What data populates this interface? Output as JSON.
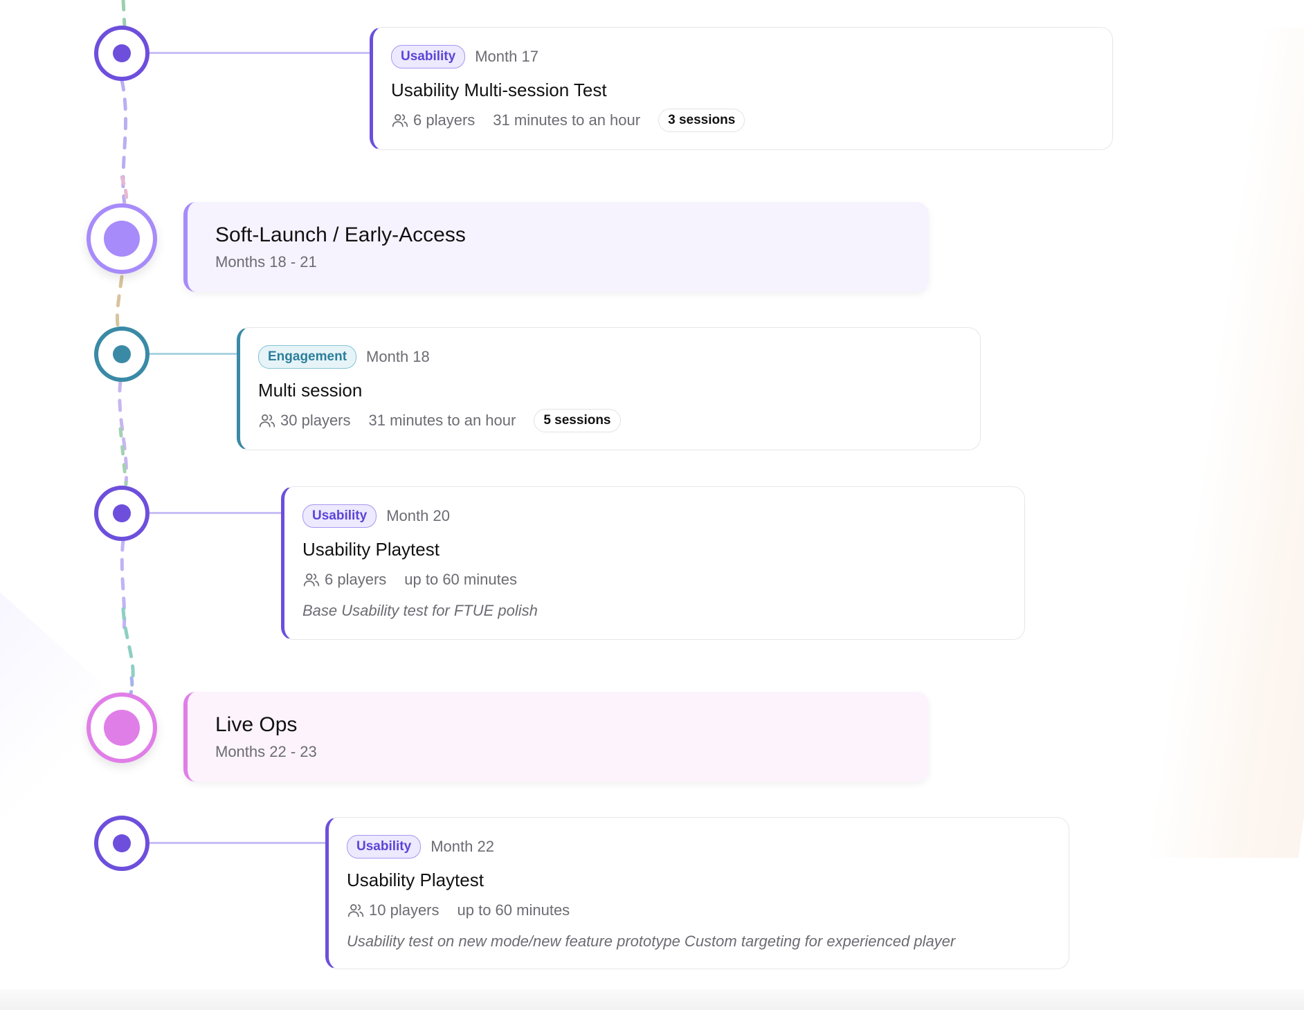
{
  "colors": {
    "usability": "#6d4fdc",
    "usability_line": "#c7bdf5",
    "engagement": "#3a8aa6",
    "engagement_line": "#a9d3e0",
    "phase_softlaunch": "#a78bfa",
    "phase_softlaunch_bg": "#f6f3ff",
    "phase_liveops": "#e07ee8",
    "phase_liveops_bg": "#fcf3fd"
  },
  "timeline": {
    "items": [
      {
        "kind": "test",
        "tag": "Usability",
        "month": "Month 17",
        "title": "Usability Multi-session Test",
        "players": "6 players",
        "duration": "31 minutes to an hour",
        "sessions": "3 sessions"
      },
      {
        "kind": "phase",
        "title": "Soft-Launch / Early-Access",
        "subtitle": "Months 18 - 21"
      },
      {
        "kind": "test",
        "tag": "Engagement",
        "month": "Month 18",
        "title": "Multi session",
        "players": "30 players",
        "duration": "31 minutes to an hour",
        "sessions": "5 sessions"
      },
      {
        "kind": "test",
        "tag": "Usability",
        "month": "Month 20",
        "title": "Usability Playtest",
        "players": "6 players",
        "duration": "up to 60 minutes",
        "note": "Base Usability test for FTUE polish"
      },
      {
        "kind": "phase",
        "title": "Live Ops",
        "subtitle": "Months 22 - 23"
      },
      {
        "kind": "test",
        "tag": "Usability",
        "month": "Month 22",
        "title": "Usability Playtest",
        "players": "10 players",
        "duration": "up to 60 minutes",
        "note": "Usability test on new mode/new feature prototype Custom targeting for experienced player"
      }
    ]
  }
}
